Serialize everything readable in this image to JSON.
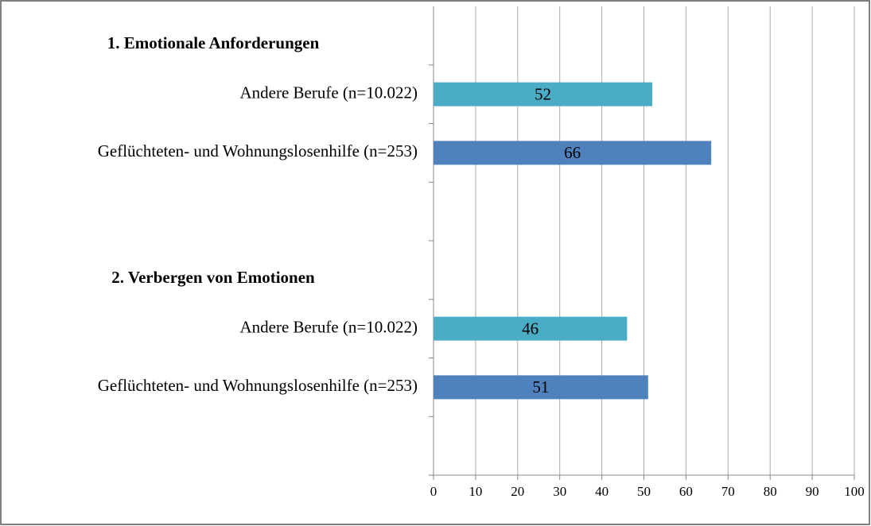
{
  "chart_data": {
    "type": "bar",
    "orientation": "horizontal",
    "groups": [
      {
        "name": "1. Emotionale Anforderungen",
        "categories": [
          "Andere Berufe (n=10.022)",
          "Geflüchteten- und Wohnungslosenhilfe (n=253)"
        ],
        "values": [
          52,
          66
        ],
        "colors": [
          "#4bacc6",
          "#4f81bd"
        ]
      },
      {
        "name": "2. Verbergen von Emotionen",
        "categories": [
          "Andere Berufe (n=10.022)",
          "Geflüchteten- und Wohnungslosenhilfe (n=253)"
        ],
        "values": [
          46,
          51
        ],
        "colors": [
          "#4bacc6",
          "#4f81bd"
        ]
      }
    ],
    "xlim": [
      0,
      100
    ],
    "xticks": [
      0,
      10,
      20,
      30,
      40,
      50,
      60,
      70,
      80,
      90,
      100
    ],
    "grid": true
  }
}
